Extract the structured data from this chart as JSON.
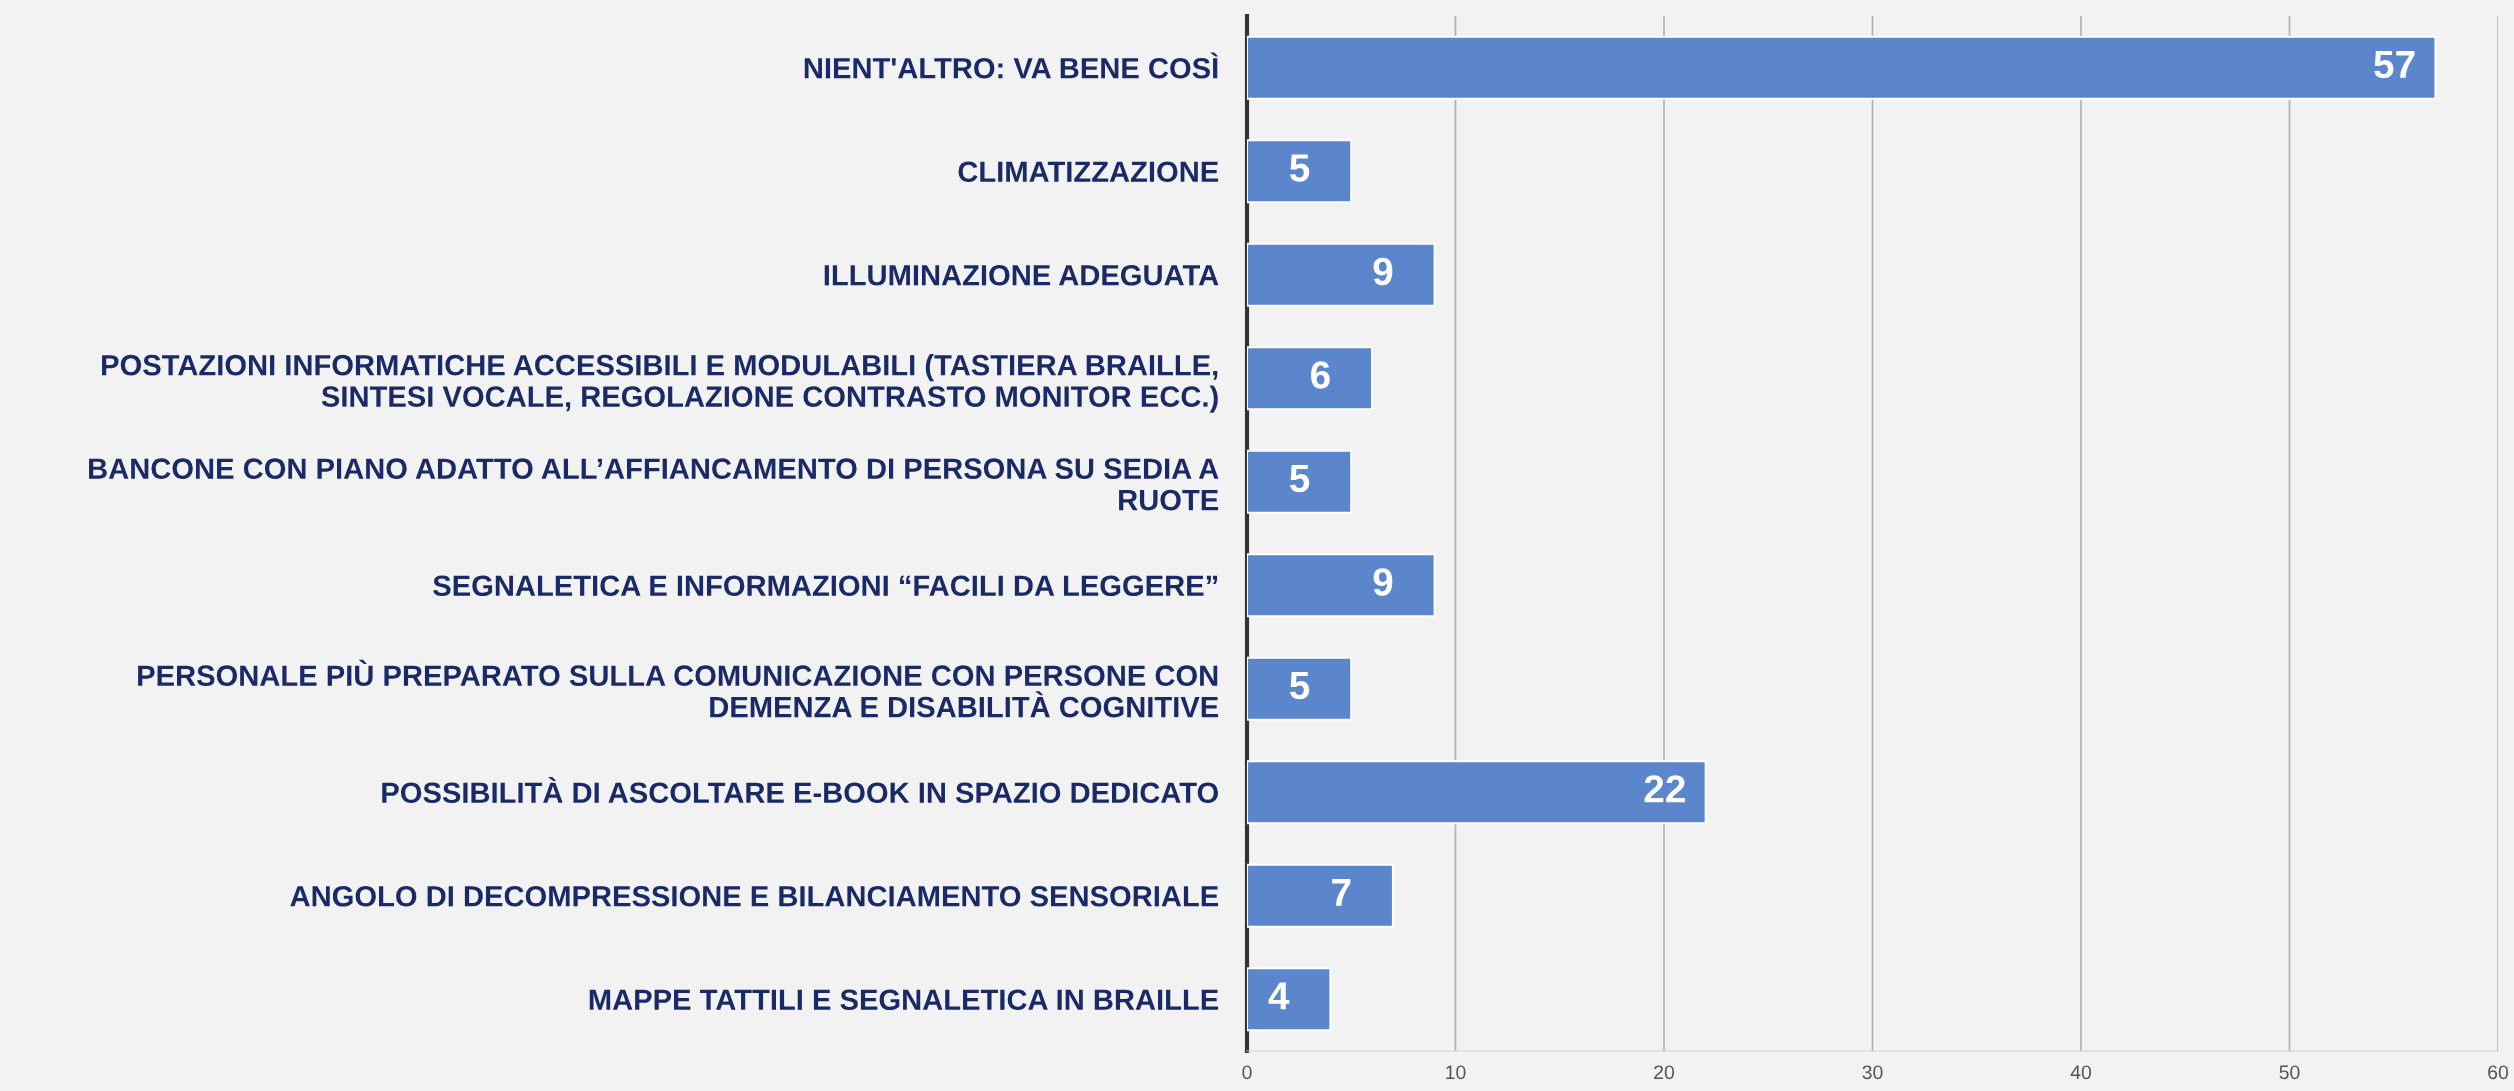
{
  "chart_data": {
    "type": "bar",
    "orientation": "horizontal",
    "categories": [
      "NIENT'ALTRO: VA BENE COSÌ",
      "CLIMATIZZAZIONE",
      "ILLUMINAZIONE ADEGUATA",
      "POSTAZIONI INFORMATICHE ACCESSIBILI E MODULABILI (TASTIERA BRAILLE,\nSINTESI VOCALE, REGOLAZIONE CONTRASTO MONITOR ECC.)",
      "BANCONE CON PIANO ADATTO ALL’AFFIANCAMENTO DI PERSONA SU SEDIA A\nRUOTE",
      "SEGNALETICA E INFORMAZIONI “FACILI DA LEGGERE”",
      "PERSONALE PIÙ PREPARATO SULLA COMUNICAZIONE CON PERSONE CON\nDEMENZA E DISABILITÀ COGNITIVE",
      "POSSIBILITÀ DI ASCOLTARE E-BOOK IN SPAZIO DEDICATO",
      "ANGOLO DI DECOMPRESSIONE E BILANCIAMENTO SENSORIALE",
      "MAPPE TATTILI E SEGNALETICA IN BRAILLE"
    ],
    "values": [
      57,
      5,
      9,
      6,
      5,
      9,
      5,
      22,
      7,
      4
    ],
    "color": "#5b86cc",
    "xlim": [
      0,
      60
    ],
    "xticks": [
      0,
      10,
      20,
      30,
      40,
      50,
      60
    ],
    "grid": "x",
    "data_labels": true
  }
}
